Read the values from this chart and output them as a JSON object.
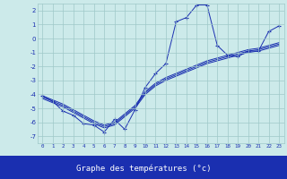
{
  "xlabel": "Graphe des températures (°c)",
  "bg_color": "#cceaea",
  "grid_color": "#9fc8c8",
  "line_color": "#1a2fb0",
  "xlabel_bg": "#1a2fb0",
  "x_ticks": [
    0,
    1,
    2,
    3,
    4,
    5,
    6,
    7,
    8,
    9,
    10,
    11,
    12,
    13,
    14,
    15,
    16,
    17,
    18,
    19,
    20,
    21,
    22,
    23
  ],
  "y_ticks": [
    -7,
    -6,
    -5,
    -4,
    -3,
    -2,
    -1,
    0,
    1,
    2
  ],
  "xlim": [
    0,
    23
  ],
  "ylim": [
    -7.5,
    2.5
  ],
  "band_line1": [
    -4.1,
    -4.4,
    -4.7,
    -5.1,
    -5.5,
    -5.9,
    -6.2,
    -6.0,
    -5.4,
    -4.8,
    -3.8,
    -3.2,
    -2.8,
    -2.5,
    -2.2,
    -1.9,
    -1.6,
    -1.4,
    -1.2,
    -1.0,
    -0.8,
    -0.7,
    -0.5,
    -0.3
  ],
  "band_line2": [
    -4.2,
    -4.5,
    -4.8,
    -5.2,
    -5.6,
    -6.0,
    -6.3,
    -6.1,
    -5.5,
    -4.9,
    -3.9,
    -3.3,
    -2.9,
    -2.6,
    -2.3,
    -2.0,
    -1.7,
    -1.5,
    -1.3,
    -1.1,
    -0.9,
    -0.8,
    -0.6,
    -0.4
  ],
  "band_line3": [
    -4.3,
    -4.6,
    -4.9,
    -5.3,
    -5.7,
    -6.1,
    -6.4,
    -6.2,
    -5.6,
    -5.0,
    -4.0,
    -3.4,
    -3.0,
    -2.7,
    -2.4,
    -2.1,
    -1.8,
    -1.6,
    -1.4,
    -1.2,
    -1.0,
    -0.9,
    -0.7,
    -0.5
  ],
  "zigzag_y": [
    -4.1,
    -4.5,
    -5.2,
    -5.5,
    -6.1,
    -6.2,
    -6.7,
    -5.8,
    -6.5,
    -5.1,
    -3.5,
    -2.5,
    -1.8,
    1.2,
    1.5,
    2.4,
    2.4,
    -0.5,
    -1.2,
    -1.3,
    -0.9,
    -0.9,
    0.5,
    0.9
  ]
}
